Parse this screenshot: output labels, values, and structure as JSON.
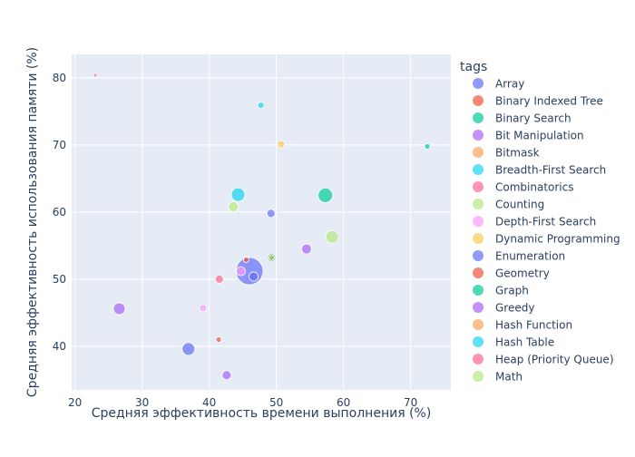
{
  "chart_data": {
    "type": "scatter",
    "title": "",
    "xlabel": "Средняя эффективность времени выполнения (%)",
    "ylabel": "Средняя эффективность использования памяти (%)",
    "xlim": [
      19.5,
      76
    ],
    "ylim": [
      33.5,
      83.5
    ],
    "x_ticks": [
      20,
      30,
      40,
      50,
      60,
      70
    ],
    "y_ticks": [
      40,
      50,
      60,
      70,
      80
    ],
    "grid": true,
    "legend_title": "tags",
    "legend_position": "right",
    "series": [
      {
        "name": "Array",
        "color": "#636efa",
        "points": [
          {
            "x": 46.0,
            "y": 51.2,
            "size": 30
          }
        ]
      },
      {
        "name": "Binary Indexed Tree",
        "color": "#EF553B",
        "points": [
          {
            "x": 45.5,
            "y": 52.9,
            "size": 6
          }
        ]
      },
      {
        "name": "Binary Search",
        "color": "#00cc96",
        "points": [
          {
            "x": 57.3,
            "y": 62.5,
            "size": 16
          }
        ]
      },
      {
        "name": "Bit Manipulation",
        "color": "#ab63fa",
        "points": [
          {
            "x": 26.6,
            "y": 45.6,
            "size": 13
          }
        ]
      },
      {
        "name": "Bitmask",
        "color": "#FFA15A",
        "points": [
          {
            "x": 49.3,
            "y": 53.2,
            "size": 6
          }
        ]
      },
      {
        "name": "Breadth-First Search",
        "color": "#19d3f3",
        "points": [
          {
            "x": 44.3,
            "y": 62.6,
            "size": 15
          }
        ]
      },
      {
        "name": "Combinatorics",
        "color": "#FF6692",
        "points": [
          {
            "x": 23.0,
            "y": 80.4,
            "size": 4
          }
        ]
      },
      {
        "name": "Counting",
        "color": "#B6E880",
        "points": [
          {
            "x": 43.6,
            "y": 60.8,
            "size": 11
          }
        ]
      },
      {
        "name": "Depth-First Search",
        "color": "#FF97FF",
        "points": [
          {
            "x": 39.1,
            "y": 45.7,
            "size": 8
          }
        ]
      },
      {
        "name": "Dynamic Programming",
        "color": "#FECB52",
        "points": [
          {
            "x": 50.7,
            "y": 70.1,
            "size": 8
          }
        ]
      },
      {
        "name": "Enumeration",
        "color": "#636efa",
        "points": [
          {
            "x": 36.9,
            "y": 39.6,
            "size": 14
          },
          {
            "x": 46.6,
            "y": 50.4,
            "size": 10
          },
          {
            "x": 49.2,
            "y": 59.8,
            "size": 9
          }
        ]
      },
      {
        "name": "Geometry",
        "color": "#EF553B",
        "points": [
          {
            "x": 41.4,
            "y": 41.0,
            "size": 6
          }
        ]
      },
      {
        "name": "Graph",
        "color": "#00cc96",
        "points": [
          {
            "x": 72.5,
            "y": 69.8,
            "size": 6
          }
        ]
      },
      {
        "name": "Greedy",
        "color": "#ab63fa",
        "points": [
          {
            "x": 42.6,
            "y": 35.7,
            "size": 10
          },
          {
            "x": 54.5,
            "y": 54.5,
            "size": 11
          }
        ]
      },
      {
        "name": "Hash Function",
        "color": "#FFA15A",
        "points": []
      },
      {
        "name": "Hash Table",
        "color": "#19d3f3",
        "points": [
          {
            "x": 47.7,
            "y": 75.9,
            "size": 7
          }
        ]
      },
      {
        "name": "Heap (Priority Queue)",
        "color": "#FF6692",
        "points": [
          {
            "x": 41.5,
            "y": 50.0,
            "size": 9
          }
        ]
      },
      {
        "name": "Math",
        "color": "#B6E880",
        "points": [
          {
            "x": 58.3,
            "y": 56.3,
            "size": 14
          }
        ]
      }
    ],
    "extra_points": [
      {
        "x": 44.7,
        "y": 51.2,
        "size": 10,
        "color": "#FF97FF"
      },
      {
        "x": 49.3,
        "y": 53.2,
        "size": 9,
        "color": "#00cc96"
      }
    ]
  }
}
